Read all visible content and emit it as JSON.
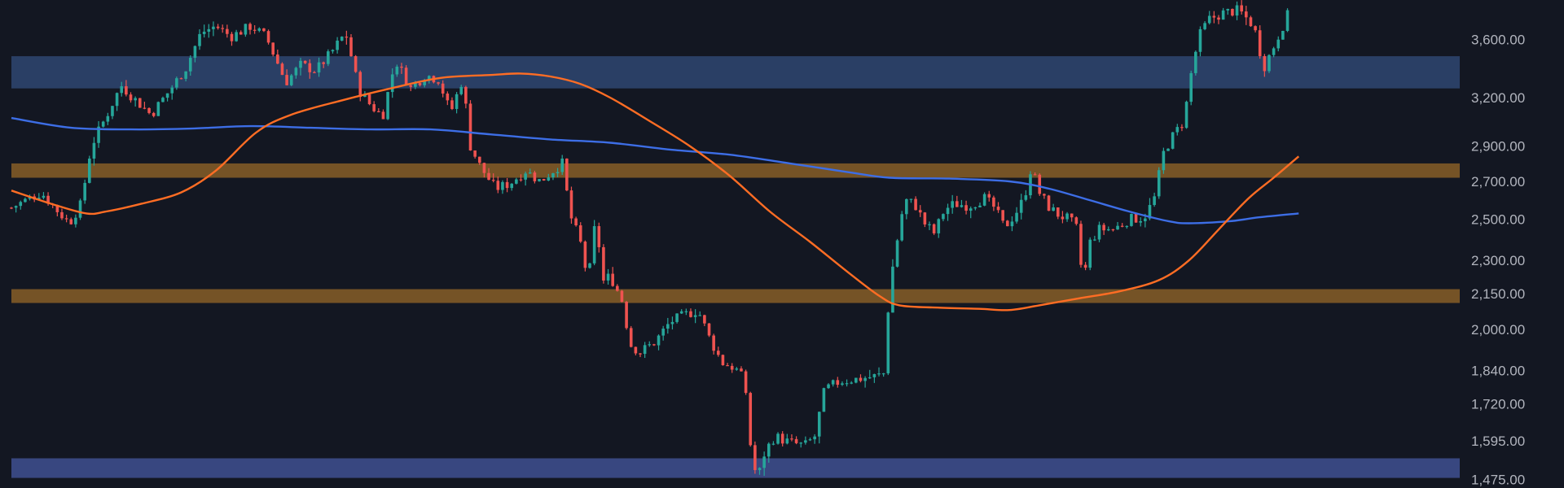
{
  "chart_data": {
    "type": "candlestick",
    "title": "",
    "xlabel": "",
    "ylabel": "",
    "y_axis": {
      "scale": "log",
      "position": "right",
      "ylim": [
        1450,
        3900
      ],
      "ticks": [
        {
          "value": 3600,
          "label": "3,600.00"
        },
        {
          "value": 3200,
          "label": "3,200.00"
        },
        {
          "value": 2900,
          "label": "2,900.00"
        },
        {
          "value": 2700,
          "label": "2,700.00"
        },
        {
          "value": 2500,
          "label": "2,500.00"
        },
        {
          "value": 2300,
          "label": "2,300.00"
        },
        {
          "value": 2150,
          "label": "2,150.00"
        },
        {
          "value": 2000,
          "label": "2,000.00"
        },
        {
          "value": 1840,
          "label": "1,840.00"
        },
        {
          "value": 1720,
          "label": "1,720.00"
        },
        {
          "value": 1595,
          "label": "1,595.00"
        },
        {
          "value": 1475,
          "label": "1,475.00"
        }
      ]
    },
    "grid": false,
    "legend": "none",
    "colors": {
      "background": "#131722",
      "up": "#26a69a",
      "down": "#ef5350",
      "ma_fast": "#ff6d24",
      "ma_slow": "#3d6ee6",
      "zone_supply": "#2b4169",
      "zone_support": "#7a5627",
      "zone_demand": "#3a4a86",
      "tick_text": "#b2b5be"
    },
    "zones": [
      {
        "kind": "blue",
        "low": 3260,
        "high": 3480
      },
      {
        "kind": "orange",
        "low": 2720,
        "high": 2800
      },
      {
        "kind": "orange",
        "low": 2110,
        "high": 2170
      },
      {
        "kind": "blue",
        "low": 1480,
        "high": 1540
      }
    ],
    "price_path": [
      [
        0,
        2560
      ],
      [
        15,
        2600
      ],
      [
        30,
        2640
      ],
      [
        45,
        2550
      ],
      [
        58,
        2480
      ],
      [
        70,
        2580
      ],
      [
        80,
        2900
      ],
      [
        95,
        3080
      ],
      [
        110,
        3280
      ],
      [
        125,
        3180
      ],
      [
        140,
        3090
      ],
      [
        160,
        3260
      ],
      [
        175,
        3400
      ],
      [
        190,
        3650
      ],
      [
        205,
        3700
      ],
      [
        220,
        3620
      ],
      [
        240,
        3700
      ],
      [
        255,
        3620
      ],
      [
        275,
        3300
      ],
      [
        290,
        3420
      ],
      [
        305,
        3380
      ],
      [
        320,
        3500
      ],
      [
        335,
        3650
      ],
      [
        348,
        3250
      ],
      [
        360,
        3150
      ],
      [
        372,
        3080
      ],
      [
        385,
        3450
      ],
      [
        400,
        3260
      ],
      [
        415,
        3350
      ],
      [
        428,
        3320
      ],
      [
        440,
        3100
      ],
      [
        452,
        3320
      ],
      [
        460,
        2900
      ],
      [
        470,
        2780
      ],
      [
        485,
        2660
      ],
      [
        500,
        2690
      ],
      [
        515,
        2760
      ],
      [
        530,
        2700
      ],
      [
        545,
        2770
      ],
      [
        552,
        2800
      ],
      [
        560,
        2520
      ],
      [
        570,
        2390
      ],
      [
        578,
        2200
      ],
      [
        586,
        2520
      ],
      [
        592,
        2200
      ],
      [
        600,
        2230
      ],
      [
        612,
        2120
      ],
      [
        620,
        1940
      ],
      [
        630,
        1910
      ],
      [
        645,
        1950
      ],
      [
        660,
        2030
      ],
      [
        675,
        2060
      ],
      [
        688,
        2080
      ],
      [
        700,
        1960
      ],
      [
        712,
        1870
      ],
      [
        725,
        1850
      ],
      [
        735,
        1800
      ],
      [
        742,
        1530
      ],
      [
        748,
        1480
      ],
      [
        755,
        1560
      ],
      [
        765,
        1610
      ],
      [
        780,
        1590
      ],
      [
        795,
        1580
      ],
      [
        805,
        1610
      ],
      [
        815,
        1770
      ],
      [
        830,
        1800
      ],
      [
        850,
        1810
      ],
      [
        868,
        1820
      ],
      [
        875,
        1830
      ],
      [
        880,
        2180
      ],
      [
        886,
        2350
      ],
      [
        895,
        2600
      ],
      [
        905,
        2580
      ],
      [
        915,
        2480
      ],
      [
        925,
        2430
      ],
      [
        935,
        2550
      ],
      [
        945,
        2580
      ],
      [
        960,
        2570
      ],
      [
        975,
        2610
      ],
      [
        985,
        2560
      ],
      [
        995,
        2460
      ],
      [
        1005,
        2520
      ],
      [
        1015,
        2610
      ],
      [
        1022,
        2780
      ],
      [
        1030,
        2640
      ],
      [
        1040,
        2560
      ],
      [
        1050,
        2520
      ],
      [
        1060,
        2500
      ],
      [
        1068,
        2450
      ],
      [
        1074,
        2180
      ],
      [
        1080,
        2380
      ],
      [
        1090,
        2450
      ],
      [
        1105,
        2450
      ],
      [
        1120,
        2500
      ],
      [
        1135,
        2510
      ],
      [
        1145,
        2600
      ],
      [
        1155,
        2870
      ],
      [
        1165,
        2970
      ],
      [
        1175,
        3050
      ],
      [
        1182,
        3350
      ],
      [
        1190,
        3620
      ],
      [
        1200,
        3750
      ],
      [
        1215,
        3800
      ],
      [
        1230,
        3820
      ],
      [
        1245,
        3700
      ],
      [
        1255,
        3400
      ],
      [
        1265,
        3550
      ],
      [
        1280,
        3800
      ]
    ],
    "ma_fast": [
      [
        0,
        2650
      ],
      [
        40,
        2580
      ],
      [
        75,
        2530
      ],
      [
        95,
        2540
      ],
      [
        130,
        2580
      ],
      [
        170,
        2640
      ],
      [
        205,
        2760
      ],
      [
        245,
        2980
      ],
      [
        280,
        3090
      ],
      [
        330,
        3180
      ],
      [
        380,
        3260
      ],
      [
        430,
        3330
      ],
      [
        480,
        3350
      ],
      [
        510,
        3360
      ],
      [
        540,
        3340
      ],
      [
        570,
        3290
      ],
      [
        600,
        3200
      ],
      [
        640,
        3050
      ],
      [
        680,
        2900
      ],
      [
        720,
        2730
      ],
      [
        760,
        2540
      ],
      [
        800,
        2390
      ],
      [
        840,
        2240
      ],
      [
        870,
        2140
      ],
      [
        890,
        2100
      ],
      [
        930,
        2090
      ],
      [
        970,
        2085
      ],
      [
        1000,
        2080
      ],
      [
        1030,
        2100
      ],
      [
        1070,
        2130
      ],
      [
        1110,
        2160
      ],
      [
        1150,
        2210
      ],
      [
        1180,
        2300
      ],
      [
        1210,
        2450
      ],
      [
        1240,
        2610
      ],
      [
        1265,
        2720
      ],
      [
        1290,
        2840
      ]
    ],
    "ma_slow": [
      [
        0,
        3070
      ],
      [
        60,
        3010
      ],
      [
        120,
        3000
      ],
      [
        180,
        3005
      ],
      [
        240,
        3020
      ],
      [
        300,
        3010
      ],
      [
        360,
        3000
      ],
      [
        420,
        3000
      ],
      [
        480,
        2970
      ],
      [
        540,
        2940
      ],
      [
        600,
        2920
      ],
      [
        660,
        2880
      ],
      [
        720,
        2850
      ],
      [
        780,
        2800
      ],
      [
        840,
        2750
      ],
      [
        880,
        2720
      ],
      [
        940,
        2715
      ],
      [
        1000,
        2700
      ],
      [
        1040,
        2660
      ],
      [
        1080,
        2600
      ],
      [
        1120,
        2540
      ],
      [
        1160,
        2490
      ],
      [
        1180,
        2480
      ],
      [
        1220,
        2490
      ],
      [
        1250,
        2510
      ],
      [
        1290,
        2530
      ]
    ]
  }
}
